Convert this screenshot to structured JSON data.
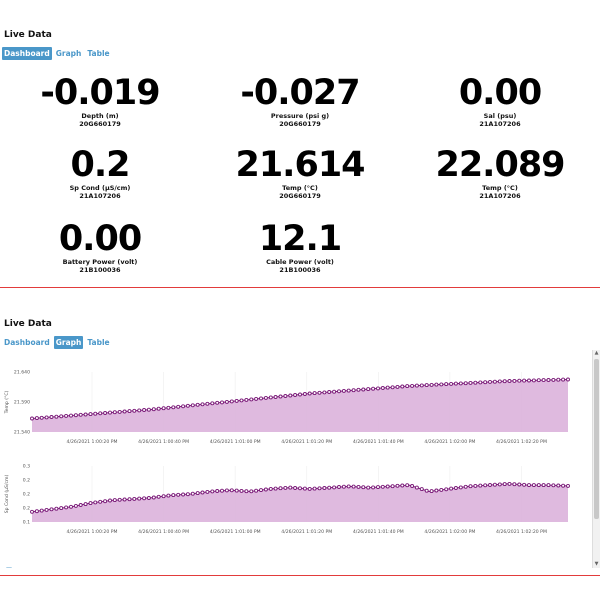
{
  "top": {
    "title": "Live Data",
    "tabs": [
      {
        "label": "Dashboard",
        "active": true
      },
      {
        "label": "Graph",
        "active": false
      },
      {
        "label": "Table",
        "active": false
      }
    ],
    "tiles": [
      {
        "value": "-0.019",
        "label": "Depth (m)",
        "serial": "20G660179"
      },
      {
        "value": "-0.027",
        "label": "Pressure (psi g)",
        "serial": "20G660179"
      },
      {
        "value": "0.00",
        "label": "Sal (psu)",
        "serial": "21A107206"
      },
      {
        "value": "0.2",
        "label": "Sp Cond (µS/cm)",
        "serial": "21A107206"
      },
      {
        "value": "21.614",
        "label": "Temp (°C)",
        "serial": "20G660179"
      },
      {
        "value": "22.089",
        "label": "Temp (°C)",
        "serial": "21A107206"
      },
      {
        "value": "0.00",
        "label": "Battery Power (volt)",
        "serial": "21B100036"
      },
      {
        "value": "12.1",
        "label": "Cable Power (volt)",
        "serial": "21B100036"
      }
    ]
  },
  "bottom": {
    "title": "Live Data",
    "tabs": [
      {
        "label": "Dashboard",
        "active": false
      },
      {
        "label": "Graph",
        "active": true
      },
      {
        "label": "Table",
        "active": false
      }
    ],
    "footer_mark": "—"
  },
  "colors": {
    "accent": "#4a97c9",
    "divider": "#e23b3b",
    "series_line": "#7a1a78",
    "series_fill": "#dcb2dc"
  },
  "chart_data": [
    {
      "type": "area",
      "ylabel": "Temp (°C)",
      "yticks": [
        "21.640",
        "21.590",
        "21.540"
      ],
      "ylim": [
        21.54,
        21.66
      ],
      "xticks": [
        "4/26/2021 1:00:20 PM",
        "4/26/2021 1:00:40 PM",
        "4/26/2021 1:01:00 PM",
        "4/26/2021 1:01:20 PM",
        "4/26/2021 1:01:40 PM",
        "4/26/2021 1:02:00 PM",
        "4/26/2021 1:02:20 PM"
      ],
      "series": [
        {
          "values": [
            21.567,
            21.57,
            21.573,
            21.576,
            21.579,
            21.582,
            21.585,
            21.589,
            21.593,
            21.597,
            21.601,
            21.605,
            21.609,
            21.613,
            21.617,
            21.62,
            21.623,
            21.626,
            21.629,
            21.632,
            21.634,
            21.636,
            21.638,
            21.64,
            21.642,
            21.643,
            21.644,
            21.645
          ]
        }
      ]
    },
    {
      "type": "area",
      "ylabel": "Sp Cond (µS/cm)",
      "yticks": [
        "0.3",
        "0.2",
        "0.2",
        "0.2",
        "0.1"
      ],
      "ylim": [
        0.08,
        0.3
      ],
      "xticks": [
        "4/26/2021 1:00:20 PM",
        "4/26/2021 1:00:40 PM",
        "4/26/2021 1:01:00 PM",
        "4/26/2021 1:01:20 PM",
        "4/26/2021 1:01:40 PM",
        "4/26/2021 1:02:00 PM",
        "4/26/2021 1:02:20 PM"
      ],
      "series": [
        {
          "values": [
            0.12,
            0.13,
            0.14,
            0.155,
            0.165,
            0.17,
            0.175,
            0.185,
            0.19,
            0.2,
            0.205,
            0.2,
            0.21,
            0.215,
            0.21,
            0.215,
            0.22,
            0.215,
            0.22,
            0.225,
            0.2,
            0.21,
            0.22,
            0.225,
            0.23,
            0.225,
            0.225,
            0.222
          ]
        }
      ]
    }
  ]
}
